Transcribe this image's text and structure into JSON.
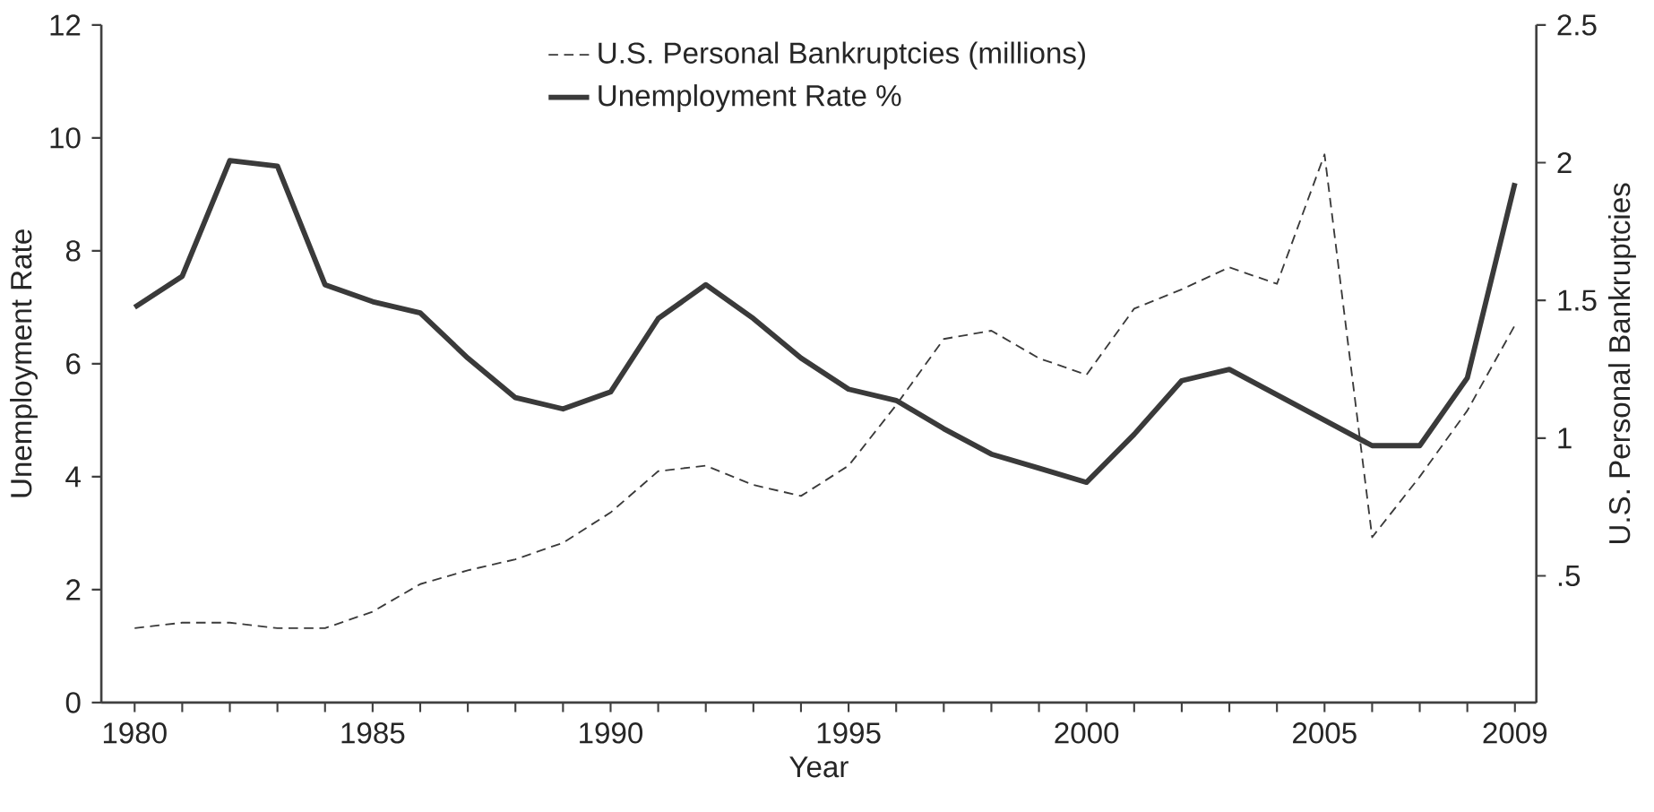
{
  "chart_data": {
    "type": "line",
    "xlabel": "Year",
    "ylabel": "Unemployment Rate",
    "y2label": "U.S. Personal Bankruptcies",
    "legend": "top",
    "x": [
      1980,
      1981,
      1982,
      1983,
      1984,
      1985,
      1986,
      1987,
      1988,
      1989,
      1990,
      1991,
      1992,
      1993,
      1994,
      1995,
      1996,
      1997,
      1998,
      1999,
      2000,
      2001,
      2002,
      2003,
      2004,
      2005,
      2006,
      2007,
      2008,
      2009
    ],
    "xlim": [
      1979.3,
      2009.45
    ],
    "xticks": [
      1980,
      {
        "value": 1981,
        "label": null
      },
      {
        "value": 1982,
        "label": null
      },
      {
        "value": 1983,
        "label": null
      },
      {
        "value": 1984,
        "label": null
      },
      1985,
      {
        "value": 1986,
        "label": null
      },
      {
        "value": 1987,
        "label": null
      },
      {
        "value": 1988,
        "label": null
      },
      {
        "value": 1989,
        "label": null
      },
      1990,
      {
        "value": 1991,
        "label": null
      },
      {
        "value": 1992,
        "label": null
      },
      {
        "value": 1993,
        "label": null
      },
      {
        "value": 1994,
        "label": null
      },
      1995,
      {
        "value": 1996,
        "label": null
      },
      {
        "value": 1997,
        "label": null
      },
      {
        "value": 1998,
        "label": null
      },
      {
        "value": 1999,
        "label": null
      },
      2000,
      {
        "value": 2001,
        "label": null
      },
      {
        "value": 2002,
        "label": null
      },
      {
        "value": 2003,
        "label": null
      },
      {
        "value": 2004,
        "label": null
      },
      2005,
      {
        "value": 2006,
        "label": null
      },
      {
        "value": 2007,
        "label": null
      },
      {
        "value": 2008,
        "label": null
      },
      2009
    ],
    "ylim": [
      0,
      12
    ],
    "yticks": [
      0,
      2,
      4,
      6,
      8,
      10,
      12
    ],
    "y2lim": [
      0.04,
      2.5
    ],
    "y2ticks": [
      {
        "value": 0.5,
        "label": ".5"
      },
      1,
      1.5,
      2,
      2.5
    ],
    "series": [
      {
        "name": "U.S. Personal Bankruptcies (millions)",
        "axis": "y2",
        "line_style": "dashed",
        "color": "#3a3a3a",
        "values": [
          0.31,
          0.33,
          0.33,
          0.31,
          0.31,
          0.37,
          0.47,
          0.52,
          0.56,
          0.62,
          0.73,
          0.88,
          0.9,
          0.83,
          0.79,
          0.9,
          1.12,
          1.36,
          1.39,
          1.29,
          1.23,
          1.47,
          1.54,
          1.62,
          1.56,
          2.03,
          0.64,
          0.86,
          1.1,
          1.41
        ]
      },
      {
        "name": "Unemployment Rate %",
        "axis": "y",
        "line_style": "solid",
        "color": "#3a3a3a",
        "values": [
          7.0,
          7.55,
          9.6,
          9.5,
          7.4,
          7.1,
          6.9,
          6.1,
          5.4,
          5.2,
          5.5,
          6.8,
          7.4,
          6.8,
          6.1,
          5.55,
          5.35,
          4.85,
          4.4,
          4.15,
          3.9,
          4.75,
          5.7,
          5.9,
          5.45,
          5.0,
          4.55,
          4.55,
          5.75,
          9.2
        ]
      }
    ]
  }
}
